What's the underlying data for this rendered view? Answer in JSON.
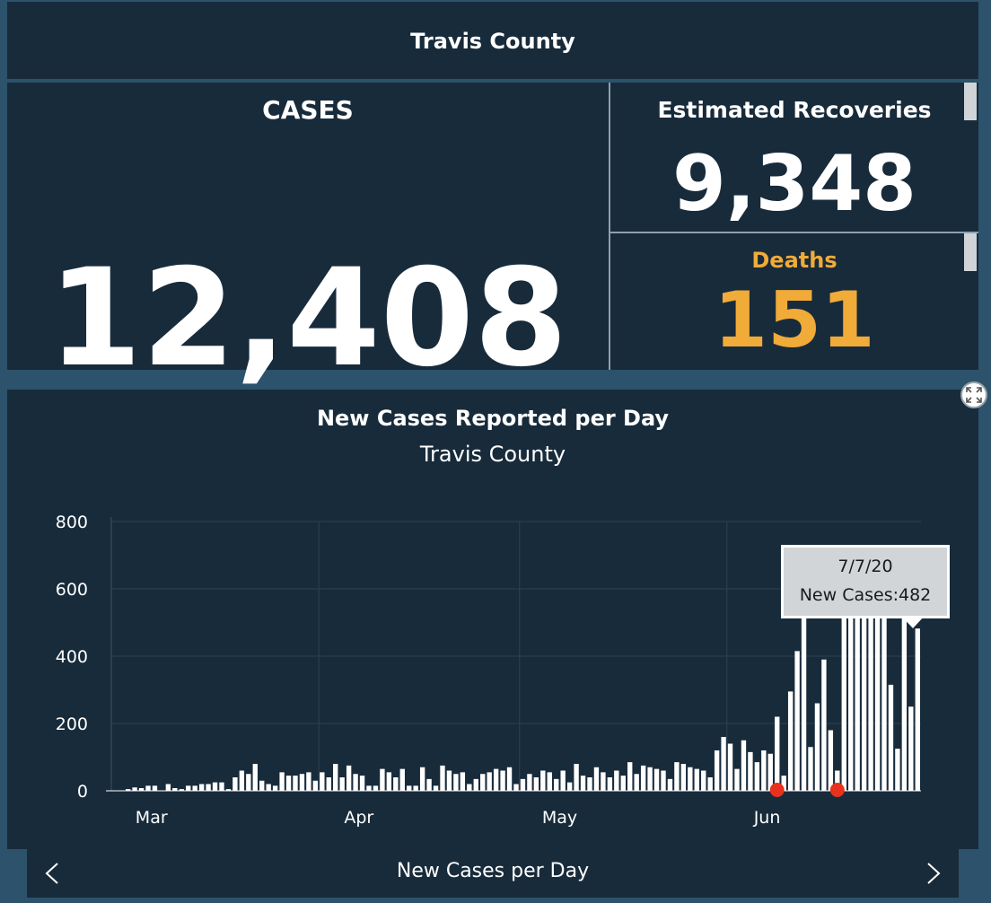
{
  "header": {
    "title": "Travis County"
  },
  "cases": {
    "label": "CASES",
    "value": "12,408"
  },
  "recoveries": {
    "label": "Estimated Recoveries",
    "value": "9,348"
  },
  "deaths": {
    "label": "Deaths",
    "value": "151"
  },
  "chart_panel": {
    "title": "New Cases Reported per Day",
    "subtitle": "Travis County"
  },
  "tooltip": {
    "date": "7/7/20",
    "text": "New Cases:482"
  },
  "footer": {
    "label": "New Cases per Day"
  },
  "icons": {
    "expand": "expand-icon",
    "prev": "chevron-left-icon",
    "next": "chevron-right-icon"
  },
  "colors": {
    "panel": "#182b3b",
    "background": "#2c536b",
    "accent": "#f0ab38",
    "bar": "#ffffff",
    "marker": "#e8321e"
  },
  "chart_data": {
    "type": "bar",
    "title": "New Cases Reported per Day",
    "subtitle": "Travis County",
    "ylim": [
      0,
      800
    ],
    "yticks": [
      0,
      200,
      400,
      600,
      800
    ],
    "xtick_labels": [
      "Mar",
      "Apr",
      "May",
      "Jun"
    ],
    "xtick_days": [
      0,
      31,
      61,
      92
    ],
    "grid": true,
    "first_day_offset": 0,
    "values": [
      0,
      0,
      5,
      10,
      8,
      15,
      15,
      0,
      20,
      8,
      5,
      15,
      15,
      20,
      20,
      25,
      25,
      5,
      40,
      60,
      50,
      80,
      30,
      20,
      15,
      55,
      45,
      45,
      50,
      55,
      30,
      55,
      40,
      80,
      40,
      75,
      50,
      45,
      15,
      15,
      65,
      55,
      40,
      65,
      15,
      15,
      70,
      35,
      15,
      75,
      60,
      50,
      55,
      20,
      35,
      50,
      55,
      65,
      60,
      70,
      20,
      35,
      50,
      40,
      60,
      55,
      35,
      60,
      25,
      80,
      45,
      40,
      70,
      55,
      40,
      60,
      45,
      85,
      50,
      75,
      70,
      65,
      60,
      35,
      85,
      80,
      70,
      65,
      60,
      40,
      120,
      160,
      140,
      65,
      150,
      115,
      85,
      120,
      110,
      220,
      45,
      295,
      415,
      575,
      130,
      260,
      390,
      180,
      60,
      720,
      700,
      560,
      605,
      560,
      585,
      590,
      315,
      125,
      555,
      250,
      482
    ],
    "markers_on_axis": [
      99,
      108
    ]
  }
}
